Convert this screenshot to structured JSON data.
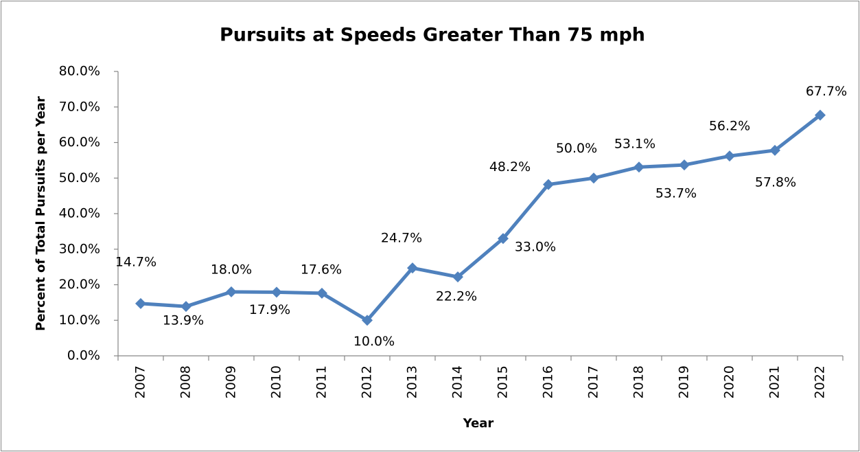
{
  "chart_data": {
    "type": "line",
    "title": "Pursuits at Speeds Greater Than 75 mph",
    "x_label": "Year",
    "y_label": "Percent of Total Pursuits per Year",
    "categories": [
      "2007",
      "2008",
      "2009",
      "2010",
      "2011",
      "2012",
      "2013",
      "2014",
      "2015",
      "2016",
      "2017",
      "2018",
      "2019",
      "2020",
      "2021",
      "2022"
    ],
    "series": [
      {
        "name": "Pursuits at Speeds Greater Than 75 mph",
        "color": "#4f81bd",
        "values": [
          14.7,
          13.9,
          18.0,
          17.9,
          17.6,
          10.0,
          24.7,
          22.2,
          33.0,
          48.2,
          50.0,
          53.1,
          53.7,
          56.2,
          57.8,
          67.7
        ],
        "value_labels": [
          "14.7%",
          "13.9%",
          "18.0%",
          "17.9%",
          "17.6%",
          "10.0%",
          "24.7%",
          "22.2%",
          "33.0%",
          "48.2%",
          "50.0%",
          "53.1%",
          "53.7%",
          "56.2%",
          "57.8%",
          "67.7%"
        ]
      }
    ],
    "ylim": [
      0,
      80
    ],
    "yticks": [
      {
        "value": 0,
        "label": "0.0%"
      },
      {
        "value": 10,
        "label": "10.0%"
      },
      {
        "value": 20,
        "label": "20.0%"
      },
      {
        "value": 30,
        "label": "30.0%"
      },
      {
        "value": 40,
        "label": "40.0%"
      },
      {
        "value": 50,
        "label": "50.0%"
      },
      {
        "value": 60,
        "label": "60.0%"
      },
      {
        "value": 70,
        "label": "70.0%"
      },
      {
        "value": 80,
        "label": "80.0%"
      }
    ],
    "grid": false,
    "legend": false
  }
}
